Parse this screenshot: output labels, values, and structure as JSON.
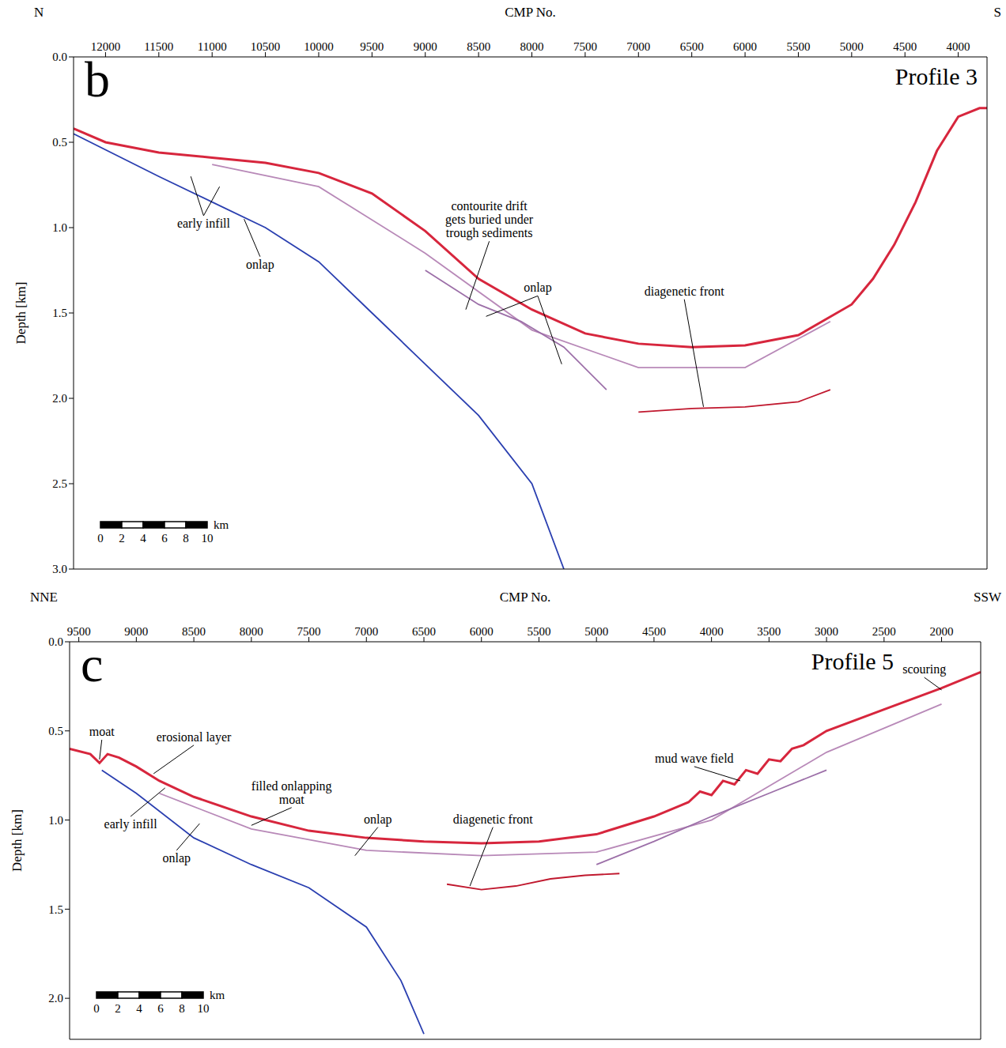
{
  "chart_data": [
    {
      "type": "line",
      "panel_label": "b",
      "title": "Profile 3",
      "x_label": "CMP No.",
      "y_label": "Depth [km]",
      "x_ends": [
        "N",
        "S"
      ],
      "xlim": [
        12300,
        3730
      ],
      "ylim": [
        3.0,
        0.0
      ],
      "xticks": [
        12000,
        11500,
        11000,
        10500,
        10000,
        9500,
        9000,
        8500,
        8000,
        7500,
        7000,
        6500,
        6000,
        5500,
        5000,
        4500,
        4000
      ],
      "yticks": [
        {
          "value": 0,
          "label": "0.0"
        },
        0.5,
        {
          "value": 1,
          "label": "1.0"
        },
        1.5,
        {
          "value": 2,
          "label": "2.0"
        },
        2.5,
        {
          "value": 3,
          "label": "3.0"
        }
      ],
      "series": [
        {
          "color": "#b889b8",
          "x": [
            11000,
            10000,
            9000,
            8000,
            7000,
            6000,
            5200
          ],
          "values": [
            0.63,
            0.76,
            1.15,
            1.6,
            1.82,
            1.82,
            1.55
          ]
        },
        {
          "color": "#9c6fa8",
          "x": [
            9000,
            8500,
            8100,
            7700,
            7300
          ],
          "values": [
            1.25,
            1.45,
            1.55,
            1.7,
            1.95
          ]
        },
        {
          "color": "#2a3fb0",
          "x": [
            12300,
            11500,
            11000,
            10500,
            10000,
            9500,
            9000,
            8500,
            8000,
            7700
          ],
          "values": [
            0.45,
            0.7,
            0.85,
            1.0,
            1.2,
            1.5,
            1.8,
            2.1,
            2.5,
            3.0
          ]
        },
        {
          "color": "#c0182e",
          "x": [
            7000,
            6500,
            6000,
            5500,
            5200
          ],
          "values": [
            2.08,
            2.06,
            2.05,
            2.02,
            1.95
          ]
        },
        {
          "color": "#d7263d",
          "x": [
            12300,
            12000,
            11500,
            11000,
            10500,
            10000,
            9500,
            9000,
            8500,
            8000,
            7500,
            7000,
            6500,
            6000,
            5500,
            5000,
            4800,
            4600,
            4400,
            4200,
            4000,
            3800,
            3730
          ],
          "values": [
            0.42,
            0.5,
            0.56,
            0.59,
            0.62,
            0.68,
            0.8,
            1.02,
            1.3,
            1.48,
            1.62,
            1.68,
            1.7,
            1.69,
            1.63,
            1.45,
            1.3,
            1.1,
            0.85,
            0.55,
            0.35,
            0.3,
            0.3
          ]
        }
      ],
      "annotations": [
        {
          "text": "early infill",
          "x": 11080,
          "y": 0.93,
          "to": [
            [
              11200,
              0.7
            ],
            [
              10930,
              0.76
            ]
          ]
        },
        {
          "text": "onlap",
          "x": 10550,
          "y": 1.17,
          "to": [
            [
              10700,
              0.95
            ]
          ]
        },
        {
          "text": "contourite drift gets buried under trough sediments",
          "x": 8400,
          "y": 1.08,
          "to": [
            [
              8620,
              1.48
            ]
          ]
        },
        {
          "text": "onlap",
          "x": 7945,
          "y": 1.4,
          "to": [
            [
              8430,
              1.52
            ],
            [
              7720,
              1.8
            ]
          ]
        },
        {
          "text": "diagenetic front",
          "x": 6570,
          "y": 1.42,
          "to": [
            [
              6390,
              2.05
            ]
          ]
        }
      ],
      "scale_bar": {
        "ticks": [
          0,
          2,
          4,
          6,
          8,
          10
        ],
        "unit": "km"
      }
    },
    {
      "type": "line",
      "panel_label": "c",
      "title": "Profile 5",
      "x_label": "CMP No.",
      "y_label": "Depth [km]",
      "x_ends": [
        "NNE",
        "SSW"
      ],
      "xlim": [
        9580,
        1660
      ],
      "ylim": [
        2.23,
        0.0
      ],
      "xticks": [
        9500,
        9000,
        8500,
        8000,
        7500,
        7000,
        6500,
        6000,
        5500,
        5000,
        4500,
        4000,
        3500,
        3000,
        2500,
        2000
      ],
      "yticks": [
        {
          "value": 0,
          "label": "0.0"
        },
        0.5,
        {
          "value": 1,
          "label": "1.0"
        },
        1.5,
        {
          "value": 2,
          "label": "2.0"
        }
      ],
      "series": [
        {
          "color": "#b889b8",
          "x": [
            8800,
            8000,
            7000,
            6000,
            5000,
            4000,
            3000,
            2000
          ],
          "values": [
            0.85,
            1.05,
            1.17,
            1.2,
            1.18,
            1.0,
            0.62,
            0.35
          ]
        },
        {
          "color": "#9c6fa8",
          "x": [
            5000,
            4500,
            4000,
            3500,
            3000
          ],
          "values": [
            1.25,
            1.12,
            0.98,
            0.85,
            0.72
          ]
        },
        {
          "color": "#2a3fb0",
          "x": [
            9300,
            9000,
            8500,
            8000,
            7500,
            7000,
            6700,
            6500
          ],
          "values": [
            0.72,
            0.85,
            1.1,
            1.25,
            1.38,
            1.6,
            1.9,
            2.2
          ]
        },
        {
          "color": "#c0182e",
          "x": [
            6300,
            6000,
            5700,
            5400,
            5100,
            4800
          ],
          "values": [
            1.36,
            1.39,
            1.37,
            1.33,
            1.31,
            1.3
          ]
        },
        {
          "color": "#d7263d",
          "x": [
            9580,
            9400,
            9320,
            9250,
            9150,
            9000,
            8800,
            8500,
            8000,
            7500,
            7000,
            6500,
            6000,
            5500,
            5000,
            4500,
            4200,
            4100,
            4000,
            3900,
            3800,
            3700,
            3600,
            3500,
            3400,
            3300,
            3200,
            3000,
            2500,
            2000,
            1660
          ],
          "values": [
            0.6,
            0.63,
            0.68,
            0.63,
            0.65,
            0.7,
            0.78,
            0.87,
            0.98,
            1.06,
            1.1,
            1.12,
            1.13,
            1.12,
            1.08,
            0.98,
            0.9,
            0.84,
            0.86,
            0.78,
            0.8,
            0.72,
            0.74,
            0.66,
            0.67,
            0.6,
            0.58,
            0.5,
            0.38,
            0.26,
            0.17
          ]
        }
      ],
      "annotations": [
        {
          "text": "moat",
          "x": 9300,
          "y": 0.55,
          "to": [
            [
              9320,
              0.66
            ]
          ]
        },
        {
          "text": "erosional layer",
          "x": 8500,
          "y": 0.58,
          "to": [
            [
              8850,
              0.74
            ]
          ]
        },
        {
          "text": "filled onlapping moat",
          "x": 7650,
          "y": 0.93,
          "to": [
            [
              8000,
              1.03
            ]
          ]
        },
        {
          "text": "early infill",
          "x": 9050,
          "y": 0.98,
          "to": [
            [
              8750,
              0.82
            ]
          ]
        },
        {
          "text": "onlap",
          "x": 8650,
          "y": 1.17,
          "to": [
            [
              8450,
              1.02
            ]
          ]
        },
        {
          "text": "onlap",
          "x": 6900,
          "y": 1.04,
          "to": [
            [
              7100,
              1.2
            ]
          ]
        },
        {
          "text": "diagenetic front",
          "x": 5900,
          "y": 1.04,
          "to": [
            [
              6100,
              1.37
            ]
          ]
        },
        {
          "text": "mud wave field",
          "x": 4150,
          "y": 0.7,
          "to": [
            [
              3750,
              0.78
            ]
          ]
        },
        {
          "text": "scouring",
          "x": 2150,
          "y": 0.2,
          "to": [
            [
              2000,
              0.27
            ]
          ]
        }
      ],
      "scale_bar": {
        "ticks": [
          0,
          2,
          4,
          6,
          8,
          10
        ],
        "unit": "km"
      }
    }
  ]
}
